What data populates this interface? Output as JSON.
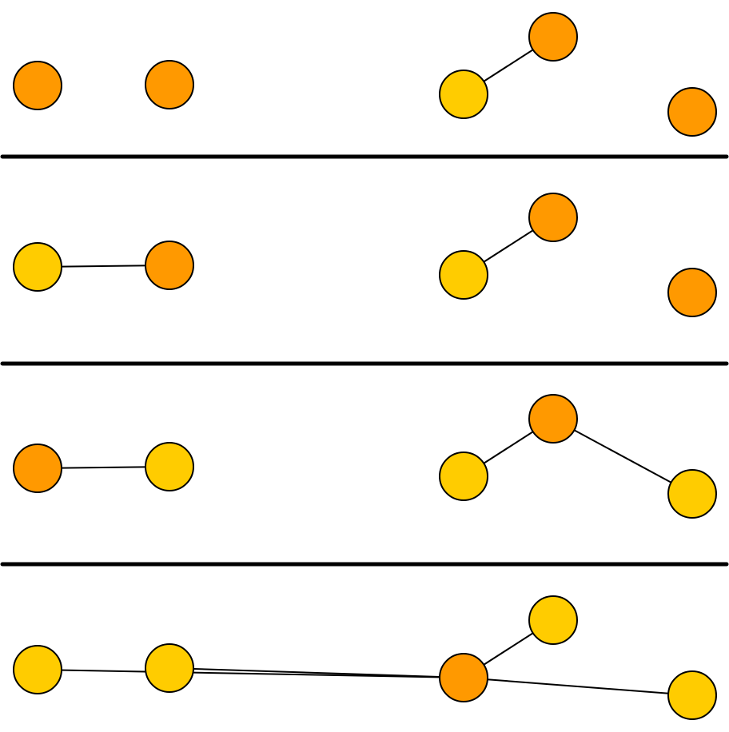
{
  "colors": {
    "orange": "#FF9900",
    "yellow": "#FFCC00",
    "line": "#000000"
  },
  "panels": [
    {
      "nodes": [
        {
          "id": "a",
          "color": "orange"
        },
        {
          "id": "b",
          "color": "orange"
        },
        {
          "id": "c",
          "color": "yellow"
        },
        {
          "id": "d",
          "color": "orange"
        },
        {
          "id": "e",
          "color": "orange"
        }
      ],
      "edges": [
        [
          "c",
          "d"
        ]
      ]
    },
    {
      "nodes": [
        {
          "id": "a",
          "color": "yellow"
        },
        {
          "id": "b",
          "color": "orange"
        },
        {
          "id": "c",
          "color": "yellow"
        },
        {
          "id": "d",
          "color": "orange"
        },
        {
          "id": "e",
          "color": "orange"
        }
      ],
      "edges": [
        [
          "a",
          "b"
        ],
        [
          "c",
          "d"
        ]
      ]
    },
    {
      "nodes": [
        {
          "id": "a",
          "color": "orange"
        },
        {
          "id": "b",
          "color": "yellow"
        },
        {
          "id": "c",
          "color": "yellow"
        },
        {
          "id": "d",
          "color": "orange"
        },
        {
          "id": "e",
          "color": "yellow"
        }
      ],
      "edges": [
        [
          "a",
          "b"
        ],
        [
          "c",
          "d"
        ],
        [
          "d",
          "e"
        ]
      ]
    },
    {
      "nodes": [
        {
          "id": "a",
          "color": "yellow"
        },
        {
          "id": "b",
          "color": "yellow"
        },
        {
          "id": "c",
          "color": "orange"
        },
        {
          "id": "d",
          "color": "yellow"
        },
        {
          "id": "e",
          "color": "yellow"
        }
      ],
      "edges": [
        [
          "a",
          "c"
        ],
        [
          "b",
          "c"
        ],
        [
          "c",
          "d"
        ],
        [
          "c",
          "e"
        ]
      ]
    }
  ]
}
